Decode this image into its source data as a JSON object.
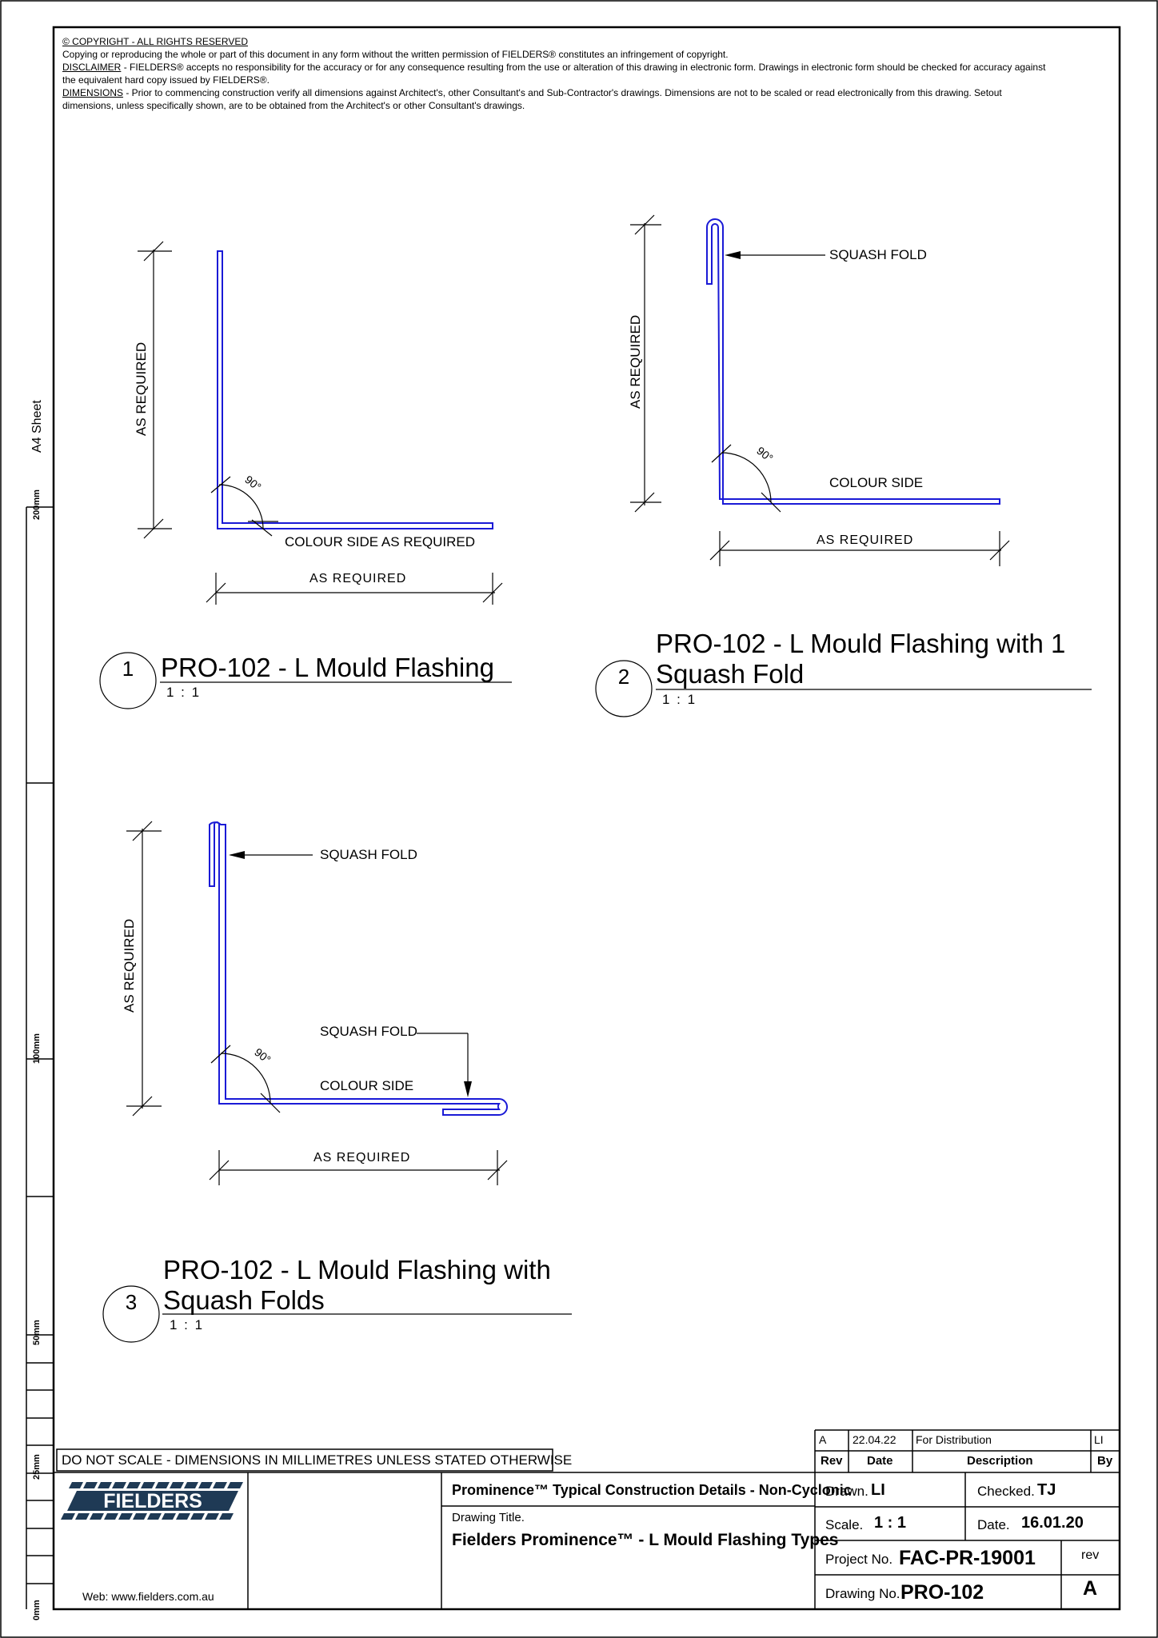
{
  "notes": {
    "copyright_head": "© COPYRIGHT - ALL RIGHTS RESERVED",
    "copyright_text": "Copying or reproducing the whole or part of this document in any form without the written permission of FIELDERS® constitutes an infringement of copyright.",
    "disclaimer_head": "DISCLAIMER",
    "disclaimer_text": " - FIELDERS® accepts no responsibility for the accuracy or for any consequence resulting from the use or alteration of this drawing in electronic form.  Drawings in electronic form should be checked for accuracy against the equivalent hard copy issued by FIELDERS®.",
    "dimensions_head": "DIMENSIONS",
    "dimensions_text": " - Prior to commencing construction verify all dimensions against Architect's, other Consultant's and Sub-Contractor's drawings. Dimensions are not to be scaled or read electronically from this drawing. Setout dimensions, unless specifically shown, are to be obtained from the Architect's or other Consultant's drawings."
  },
  "colors": {
    "flashing": "#1a1ad6",
    "line": "#000000"
  },
  "views": [
    {
      "number": "1",
      "title": "PRO-102 - L Mould Flashing",
      "scale": "1 : 1",
      "vertical_dim": "AS REQUIRED",
      "horizontal_dim": "AS REQUIRED",
      "angle": "90°",
      "colour_label": "COLOUR SIDE AS REQUIRED"
    },
    {
      "number": "2",
      "title_line1": "PRO-102 - L Mould Flashing with 1",
      "title_line2": "Squash Fold",
      "scale": "1 : 1",
      "vertical_dim": "AS REQUIRED",
      "horizontal_dim": "AS REQUIRED",
      "angle": "90°",
      "squash_label": "SQUASH FOLD",
      "colour_label": "COLOUR SIDE"
    },
    {
      "number": "3",
      "title_line1": "PRO-102 - L Mould Flashing with",
      "title_line2": "Squash Folds",
      "scale": "1 : 1",
      "vertical_dim": "AS REQUIRED",
      "horizontal_dim": "AS REQUIRED",
      "angle": "90°",
      "squash_label_top": "SQUASH FOLD",
      "squash_label_bottom": "SQUASH FOLD",
      "colour_label": "COLOUR SIDE"
    }
  ],
  "side_scale": {
    "sheet": "A4 Sheet",
    "marks": [
      "200mm",
      "100mm",
      "50mm",
      "25mm",
      "0mm"
    ]
  },
  "title_block": {
    "do_not_scale": "DO NOT SCALE - DIMENSIONS IN MILLIMETRES UNLESS STATED OTHERWISE",
    "logo_text": "FIELDERS",
    "web": "Web: www.fielders.com.au",
    "project_title": "Prominence™ Typical Construction Details - Non-Cyclonic",
    "drawing_title_label": "Drawing Title.",
    "drawing_title": "Fielders Prominence™ - L Mould Flashing Types",
    "revision_row": {
      "rev": "A",
      "date": "22.04.22",
      "description": "For Distribution",
      "by": "LI"
    },
    "rev_headers": {
      "rev": "Rev",
      "date": "Date",
      "description": "Description",
      "by": "By"
    },
    "drawn_label": "Drawn.",
    "drawn": "LI",
    "checked_label": "Checked.",
    "checked": "TJ",
    "scale_label": "Scale.",
    "scale": "1 : 1",
    "date_label": "Date.",
    "date": "16.01.20",
    "project_no_label": "Project No.",
    "project_no": "FAC-PR-19001",
    "rev_label": "rev",
    "rev": "A",
    "drawing_no_label": "Drawing No.",
    "drawing_no": "PRO-102"
  }
}
